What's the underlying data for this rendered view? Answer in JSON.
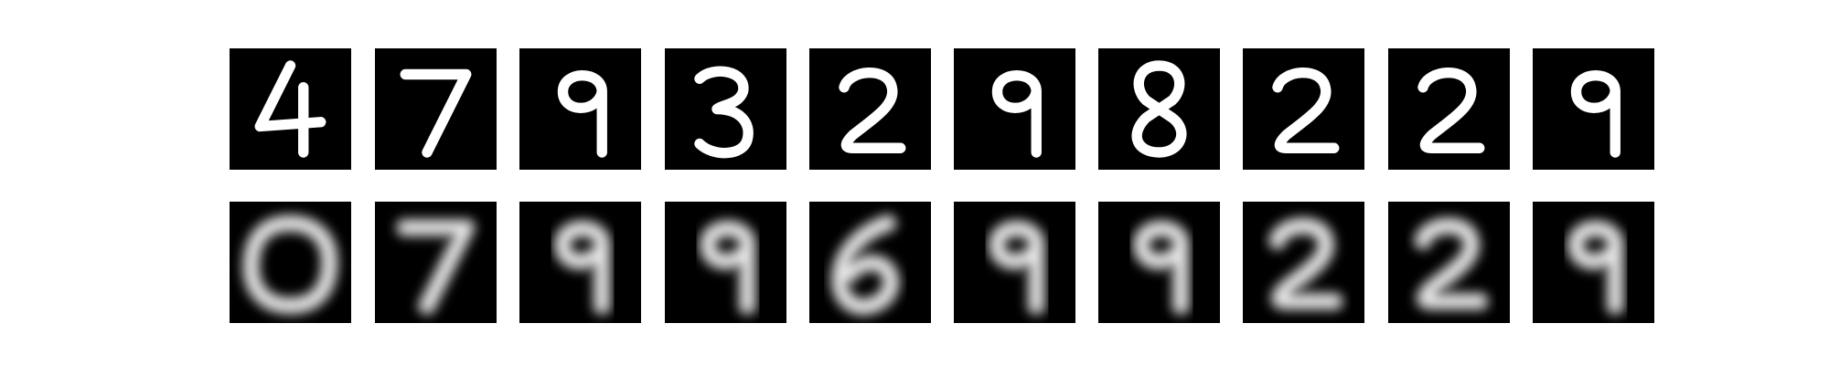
{
  "colors": {
    "background": "#ffffff",
    "tile_background": "#000000",
    "stroke_original": "#ffffff",
    "stroke_reconstruction": "#e6e6e6"
  },
  "rows": [
    {
      "name": "original-digits",
      "tiles": [
        {
          "digit": "4"
        },
        {
          "digit": "7"
        },
        {
          "digit": "9"
        },
        {
          "digit": "3"
        },
        {
          "digit": "2"
        },
        {
          "digit": "9"
        },
        {
          "digit": "8"
        },
        {
          "digit": "2"
        },
        {
          "digit": "2"
        },
        {
          "digit": "9"
        }
      ]
    },
    {
      "name": "reconstructed-digits",
      "tiles": [
        {
          "digit": "0"
        },
        {
          "digit": "7"
        },
        {
          "digit": "9"
        },
        {
          "digit": "9"
        },
        {
          "digit": "6"
        },
        {
          "digit": "9"
        },
        {
          "digit": "9"
        },
        {
          "digit": "2"
        },
        {
          "digit": "2"
        },
        {
          "digit": "9"
        }
      ]
    }
  ]
}
